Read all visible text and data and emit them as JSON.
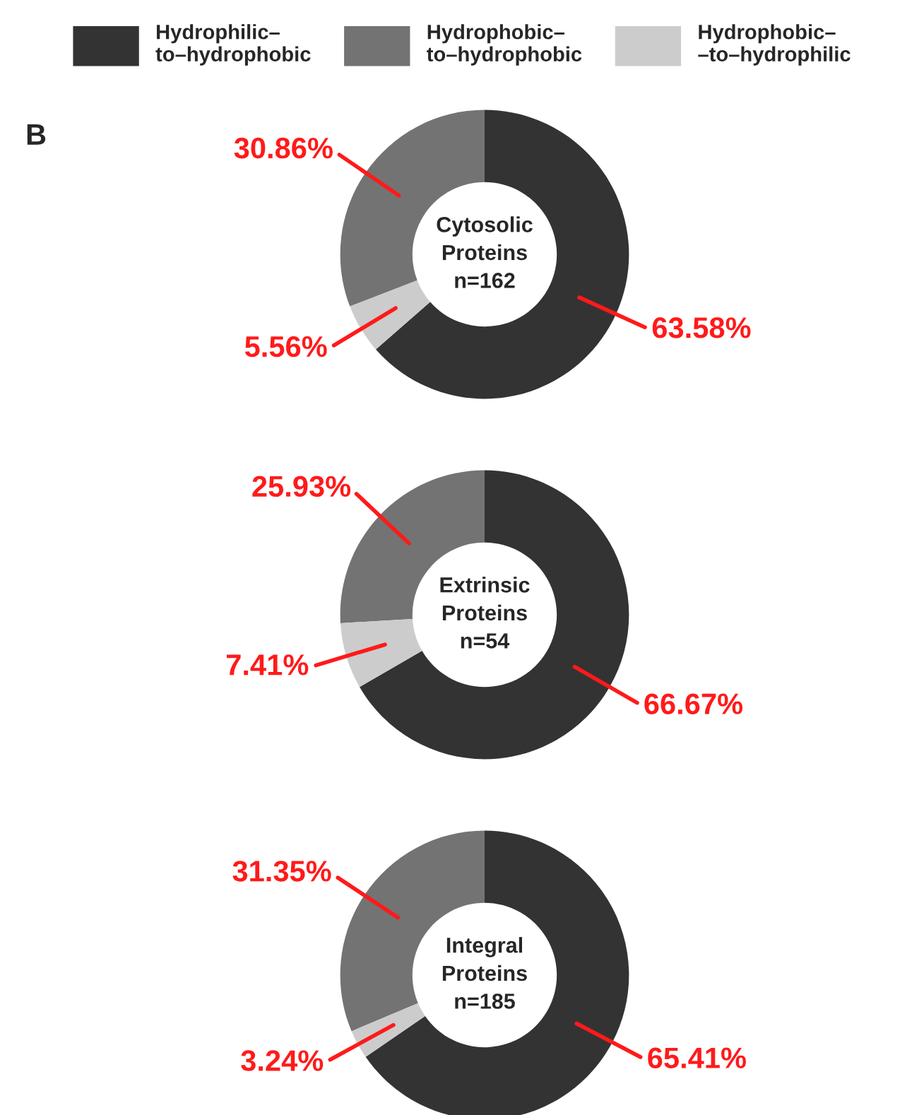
{
  "chart_data": [
    {
      "type": "donut",
      "title": "B",
      "categories": [
        "Hydrophilic–\nto–hydrophobic",
        "Hydrophobic–\nto–hydrophobic",
        "Hydrophobic–\n–to–hydrophilic"
      ],
      "values": [
        63.58,
        30.86,
        5.56
      ],
      "colors": [
        "#333333",
        "#737373",
        "#cccccc"
      ],
      "value_labels": [
        "63.58%",
        "30.86%",
        "5.56%"
      ],
      "annotations": [
        "Cytosolic\nProteins\nn=162"
      ],
      "legend": "top"
    },
    {
      "type": "donut",
      "categories": [
        null,
        null,
        null
      ],
      "values": [
        66.67,
        25.93,
        7.41
      ],
      "colors": [
        "#333333",
        "#737373",
        "#cccccc"
      ],
      "value_labels": [
        "66.67%",
        "25.93%",
        "7.41%"
      ],
      "annotations": [
        "Extrinsic\nProteins\nn=54"
      ]
    },
    {
      "type": "donut",
      "categories": [
        null,
        null,
        null
      ],
      "values": [
        65.41,
        31.35,
        3.24
      ],
      "colors": [
        "#333333",
        "#737373",
        "#cccccc"
      ],
      "value_labels": [
        "65.41%",
        "31.35%",
        "3.24%"
      ],
      "annotations": [
        "Integral\nProteins\nn=185"
      ]
    }
  ]
}
